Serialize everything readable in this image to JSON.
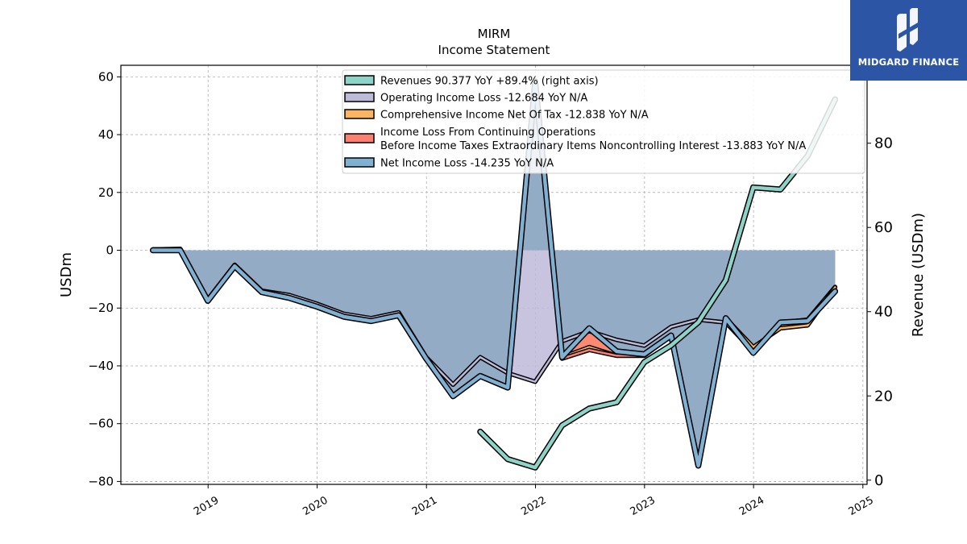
{
  "brand": {
    "name": "MIDGARD FINANCE",
    "color": "#2c55a6"
  },
  "chart_data": {
    "type": "line",
    "title": "MIRM",
    "subtitle": "Income Statement",
    "ylabel": "USDm",
    "ylabel_right": "Revenue (USDm)",
    "ylim": [
      -81,
      64
    ],
    "ylim_right": [
      -1,
      98.5
    ],
    "y_ticks": [
      60,
      40,
      20,
      0,
      -20,
      -40,
      -60,
      -80
    ],
    "y_ticks_right": [
      80,
      60,
      40,
      20,
      0
    ],
    "x_ticks": [
      "2019",
      "2020",
      "2021",
      "2022",
      "2023",
      "2024",
      "2025"
    ],
    "xlim": [
      "2018-03-15",
      "2025-01-15"
    ],
    "grid": true,
    "legend_position": "top-right",
    "series": [
      {
        "name": "Revenues",
        "legend": "Revenues  90.377 YoY +89.4% (right axis)",
        "axis": "right",
        "color": "#8dd3c7",
        "style": "line",
        "points": [
          [
            "2021-06-30",
            11.5
          ],
          [
            "2021-09-30",
            5.0
          ],
          [
            "2021-12-31",
            3.0
          ],
          [
            "2022-03-31",
            13.0
          ],
          [
            "2022-06-30",
            17.0
          ],
          [
            "2022-09-30",
            18.5
          ],
          [
            "2022-12-31",
            28.0
          ],
          [
            "2023-03-31",
            32.0
          ],
          [
            "2023-06-30",
            37.5
          ],
          [
            "2023-09-30",
            47.5
          ],
          [
            "2023-12-31",
            69.5
          ],
          [
            "2024-03-31",
            69.0
          ],
          [
            "2024-06-30",
            77.0
          ],
          [
            "2024-09-30",
            90.4
          ]
        ]
      },
      {
        "name": "Operating Income Loss",
        "legend": "Operating Income Loss  -12.684 YoY N/A",
        "axis": "left",
        "color": "#bebada",
        "style": "area",
        "points": [
          [
            "2018-06-30",
            0.3
          ],
          [
            "2018-09-30",
            0.3
          ],
          [
            "2018-12-31",
            -17.0
          ],
          [
            "2019-03-31",
            -5.0
          ],
          [
            "2019-06-30",
            -14.0
          ],
          [
            "2019-09-30",
            -15.5
          ],
          [
            "2019-12-31",
            -18.5
          ],
          [
            "2020-03-31",
            -22.0
          ],
          [
            "2020-06-30",
            -23.5
          ],
          [
            "2020-09-30",
            -21.5
          ],
          [
            "2020-12-31",
            -37.0
          ],
          [
            "2021-03-31",
            -46.5
          ],
          [
            "2021-06-30",
            -37.0
          ],
          [
            "2021-09-30",
            -42.5
          ],
          [
            "2021-12-31",
            -45.5
          ],
          [
            "2022-03-31",
            -31.5
          ],
          [
            "2022-06-30",
            -28.0
          ],
          [
            "2022-09-30",
            -31.0
          ],
          [
            "2022-12-31",
            -33.0
          ],
          [
            "2023-03-31",
            -26.5
          ],
          [
            "2023-06-30",
            -24.0
          ],
          [
            "2023-09-30",
            -25.0
          ],
          [
            "2023-12-31",
            -35.0
          ],
          [
            "2024-03-31",
            -25.0
          ],
          [
            "2024-06-30",
            -24.0
          ],
          [
            "2024-09-30",
            -12.7
          ]
        ]
      },
      {
        "name": "Comprehensive Income Net Of Tax",
        "legend": "Comprehensive Income Net Of Tax  -12.838 YoY N/A",
        "axis": "left",
        "color": "#fdb462",
        "style": "area",
        "points": [
          [
            "2018-06-30",
            0.3
          ],
          [
            "2018-09-30",
            0.5
          ],
          [
            "2018-12-31",
            -17.5
          ],
          [
            "2019-03-31",
            -5.5
          ],
          [
            "2019-06-30",
            -14.5
          ],
          [
            "2019-09-30",
            -16.5
          ],
          [
            "2019-12-31",
            -19.5
          ],
          [
            "2020-03-31",
            -23.0
          ],
          [
            "2020-06-30",
            -24.5
          ],
          [
            "2020-09-30",
            -22.5
          ],
          [
            "2020-12-31",
            -37.5
          ],
          [
            "2021-03-31",
            -50.5
          ],
          [
            "2021-06-30",
            -43.5
          ],
          [
            "2021-09-30",
            -47.5
          ],
          [
            "2021-12-31",
            58.5
          ],
          [
            "2022-03-31",
            -37.0
          ],
          [
            "2022-06-30",
            -33.5
          ],
          [
            "2022-09-30",
            -36.5
          ],
          [
            "2022-12-31",
            -36.5
          ],
          [
            "2023-03-31",
            -29.5
          ],
          [
            "2023-06-30",
            -74.5
          ],
          [
            "2023-09-30",
            -23.5
          ],
          [
            "2023-12-31",
            -33.5
          ],
          [
            "2024-03-31",
            -27.0
          ],
          [
            "2024-06-30",
            -26.0
          ],
          [
            "2024-09-30",
            -12.8
          ]
        ]
      },
      {
        "name": "Income Loss From Continuing Operations Before Income Taxes Extraordinary Items Noncontrolling Interest",
        "legend_line1": "Income Loss From Continuing Operations",
        "legend_line2": "Before Income Taxes Extraordinary Items Noncontrolling Interest  -13.883 YoY N/A",
        "axis": "left",
        "color": "#fb8072",
        "style": "area",
        "points": [
          [
            "2018-06-30",
            0.0
          ],
          [
            "2018-09-30",
            0.0
          ],
          [
            "2018-12-31",
            -17.5
          ],
          [
            "2019-03-31",
            -5.5
          ],
          [
            "2019-06-30",
            -14.5
          ],
          [
            "2019-09-30",
            -16.5
          ],
          [
            "2019-12-31",
            -19.5
          ],
          [
            "2020-03-31",
            -23.0
          ],
          [
            "2020-06-30",
            -24.5
          ],
          [
            "2020-09-30",
            -22.5
          ],
          [
            "2020-12-31",
            -37.5
          ],
          [
            "2021-03-31",
            -50.5
          ],
          [
            "2021-06-30",
            -43.5
          ],
          [
            "2021-09-30",
            -47.5
          ],
          [
            "2021-12-31",
            58.5
          ],
          [
            "2022-03-31",
            -37.5
          ],
          [
            "2022-06-30",
            -34.5
          ],
          [
            "2022-09-30",
            -36.5
          ],
          [
            "2022-12-31",
            -36.5
          ],
          [
            "2023-03-31",
            -29.5
          ],
          [
            "2023-06-30",
            -74.5
          ],
          [
            "2023-09-30",
            -23.5
          ],
          [
            "2023-12-31",
            -35.5
          ],
          [
            "2024-03-31",
            -25.0
          ],
          [
            "2024-06-30",
            -24.5
          ],
          [
            "2024-09-30",
            -13.9
          ]
        ]
      },
      {
        "name": "Net Income Loss",
        "legend": "Net Income Loss  -14.235 YoY N/A",
        "axis": "left",
        "color": "#80b1d3",
        "style": "area",
        "points": [
          [
            "2018-06-30",
            0.0
          ],
          [
            "2018-09-30",
            0.0
          ],
          [
            "2018-12-31",
            -17.5
          ],
          [
            "2019-03-31",
            -5.5
          ],
          [
            "2019-06-30",
            -14.5
          ],
          [
            "2019-09-30",
            -16.5
          ],
          [
            "2019-12-31",
            -19.5
          ],
          [
            "2020-03-31",
            -23.0
          ],
          [
            "2020-06-30",
            -24.5
          ],
          [
            "2020-09-30",
            -22.5
          ],
          [
            "2020-12-31",
            -37.5
          ],
          [
            "2021-03-31",
            -50.5
          ],
          [
            "2021-06-30",
            -43.5
          ],
          [
            "2021-09-30",
            -47.5
          ],
          [
            "2021-12-31",
            58.5
          ],
          [
            "2022-03-31",
            -37.0
          ],
          [
            "2022-06-30",
            -27.0
          ],
          [
            "2022-09-30",
            -35.0
          ],
          [
            "2022-12-31",
            -36.0
          ],
          [
            "2023-03-31",
            -29.5
          ],
          [
            "2023-06-30",
            -74.5
          ],
          [
            "2023-09-30",
            -23.5
          ],
          [
            "2023-12-31",
            -35.5
          ],
          [
            "2024-03-31",
            -25.0
          ],
          [
            "2024-06-30",
            -24.5
          ],
          [
            "2024-09-30",
            -14.2
          ]
        ]
      }
    ]
  }
}
